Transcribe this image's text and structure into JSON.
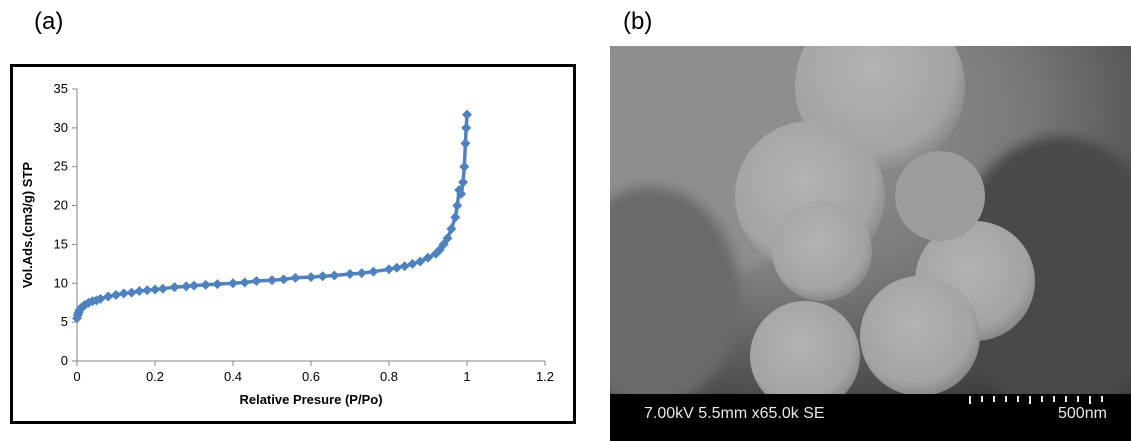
{
  "panels": {
    "a_label": "(a)",
    "b_label": "(b)"
  },
  "chart_data": {
    "type": "line",
    "title": "",
    "xlabel": "Relative Presure (P/Po)",
    "ylabel": "Vol.Ads.(cm3/g) STP",
    "xlim": [
      0,
      1.2
    ],
    "ylim": [
      0,
      35
    ],
    "xticks": [
      0,
      0.2,
      0.4,
      0.6,
      0.8,
      1,
      1.2
    ],
    "xtick_labels": [
      "0",
      "0.2",
      "0.4",
      "0.6",
      "0.8",
      "1",
      "1.2"
    ],
    "yticks": [
      0,
      5,
      10,
      15,
      20,
      25,
      30,
      35
    ],
    "ytick_labels": [
      "0",
      "5",
      "10",
      "15",
      "20",
      "25",
      "30",
      "35"
    ],
    "grid": false,
    "marker": "diamond",
    "color": "#4f81bd",
    "series": [
      {
        "x": [
          0.0,
          0.002,
          0.004,
          0.006,
          0.01,
          0.015,
          0.02,
          0.03,
          0.04,
          0.05,
          0.06,
          0.08,
          0.1,
          0.12,
          0.14,
          0.16,
          0.18,
          0.2,
          0.22,
          0.25,
          0.28,
          0.3,
          0.33,
          0.36,
          0.4,
          0.43,
          0.46,
          0.5,
          0.53,
          0.56,
          0.6,
          0.63,
          0.66,
          0.7,
          0.73,
          0.76,
          0.8,
          0.82,
          0.84,
          0.86,
          0.88,
          0.9,
          0.92,
          0.93,
          0.94,
          0.95,
          0.96,
          0.97,
          0.975,
          0.98,
          0.985,
          0.99,
          0.993,
          0.996,
          0.998,
          1.0
        ],
        "y": [
          5.5,
          5.9,
          6.2,
          6.5,
          6.8,
          7.0,
          7.2,
          7.5,
          7.7,
          7.8,
          8.0,
          8.3,
          8.5,
          8.7,
          8.8,
          9.0,
          9.1,
          9.2,
          9.3,
          9.5,
          9.6,
          9.7,
          9.8,
          9.9,
          10.0,
          10.1,
          10.3,
          10.4,
          10.5,
          10.7,
          10.8,
          10.9,
          11.0,
          11.2,
          11.3,
          11.5,
          11.8,
          12.0,
          12.2,
          12.5,
          12.8,
          13.3,
          13.8,
          14.3,
          15.0,
          15.8,
          17.0,
          18.5,
          20.0,
          22.0,
          21.5,
          23.0,
          25.0,
          28.0,
          30.0,
          31.7
        ]
      }
    ]
  },
  "sem": {
    "params_text": "7.00kV 5.5mm x65.0k SE",
    "scale_text": "500nm"
  }
}
